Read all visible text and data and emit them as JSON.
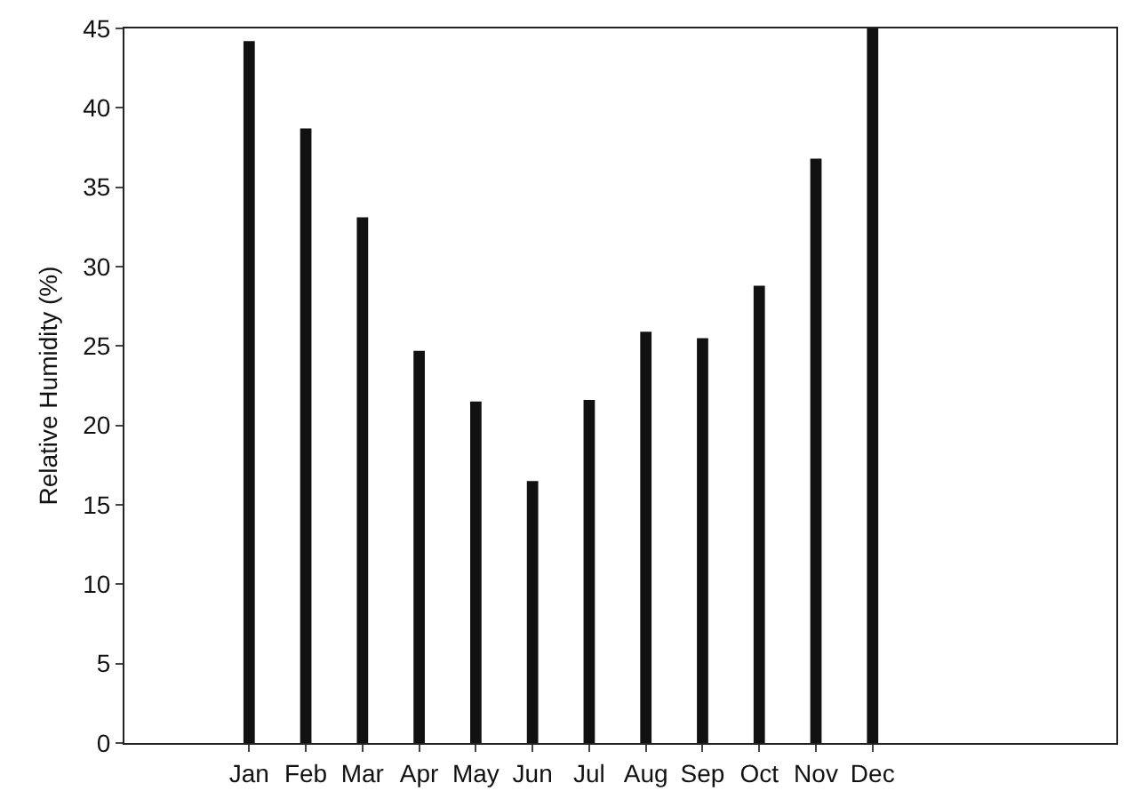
{
  "chart_data": {
    "type": "bar",
    "ylabel": "Relative Humidity (%)",
    "categories": [
      "Jan",
      "Feb",
      "Mar",
      "Apr",
      "May",
      "Jun",
      "Jul",
      "Aug",
      "Sep",
      "Oct",
      "Nov",
      "Dec"
    ],
    "values": [
      44.2,
      38.7,
      33.1,
      24.7,
      21.5,
      16.5,
      21.6,
      25.9,
      25.5,
      28.8,
      36.8,
      45
    ],
    "color": "#111111",
    "ylim": [
      0,
      45
    ],
    "yticks": [
      0,
      5,
      10,
      15,
      20,
      25,
      30,
      35,
      40,
      45
    ],
    "grid": false,
    "legend": false
  }
}
